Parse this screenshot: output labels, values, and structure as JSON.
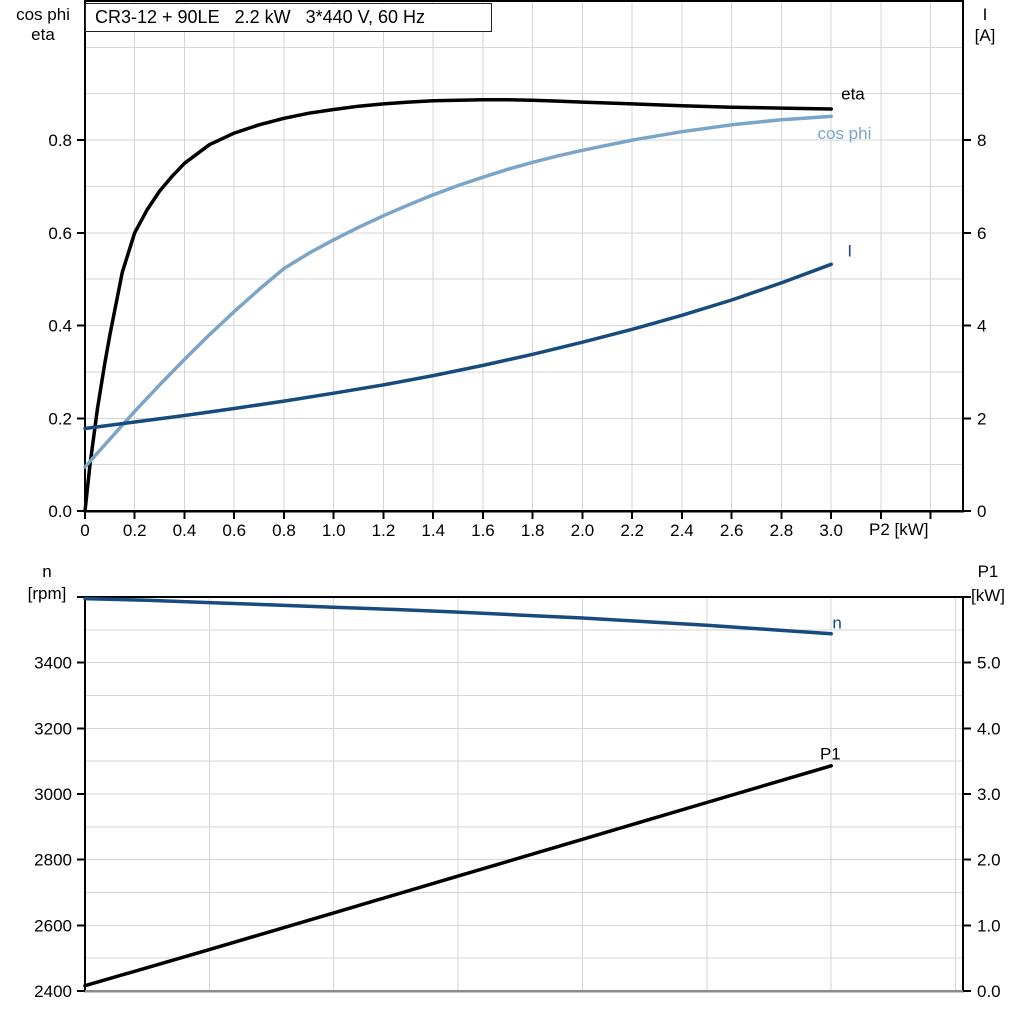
{
  "title": "CR3-12 + 90LE   2.2 kW   3*440 V, 60 Hz",
  "colors": {
    "black": "#000000",
    "light_blue": "#7aa5c8",
    "dark_blue": "#174b7d",
    "grid": "#d6d6d6",
    "axis": "#000000",
    "bottom_axis_gray": "#8c8c8c",
    "background": "#ffffff"
  },
  "top_chart_labels": {
    "left_line1": "cos phi",
    "left_line2": "eta",
    "right_line1": "I",
    "right_line2": "[A]",
    "x_axis": "P2 [kW]"
  },
  "bottom_chart_labels": {
    "left_line1": "n",
    "left_line2": "[rpm]",
    "right_line1": "P1",
    "right_line2": "[kW]"
  },
  "chart_data": [
    {
      "name": "top-chart-eta-cosphi-current",
      "type": "line",
      "title": "CR3-12 + 90LE   2.2 kW   3*440 V, 60 Hz",
      "xlabel": "P2 [kW]",
      "ylabel_left": "cos phi / eta",
      "ylabel_right": "I [A]",
      "x_range": [
        0,
        3.53
      ],
      "y_left_range": [
        0,
        1.1
      ],
      "y_right_range": [
        0,
        11
      ],
      "grid": true,
      "x_axis_color": "#000000",
      "x_ticks": [
        {
          "v": 0.0,
          "label": "0"
        },
        {
          "v": 0.2,
          "label": "0.2"
        },
        {
          "v": 0.4,
          "label": "0.4"
        },
        {
          "v": 0.6,
          "label": "0.6"
        },
        {
          "v": 0.8,
          "label": "0.8"
        },
        {
          "v": 1.0,
          "label": "1.0"
        },
        {
          "v": 1.2,
          "label": "1.2"
        },
        {
          "v": 1.4,
          "label": "1.4"
        },
        {
          "v": 1.6,
          "label": "1.6"
        },
        {
          "v": 1.8,
          "label": "1.8"
        },
        {
          "v": 2.0,
          "label": "2.0"
        },
        {
          "v": 2.2,
          "label": "2.2"
        },
        {
          "v": 2.4,
          "label": "2.4"
        },
        {
          "v": 2.6,
          "label": "2.6"
        },
        {
          "v": 2.8,
          "label": "2.8"
        },
        {
          "v": 3.0,
          "label": "3.0"
        },
        {
          "v": 3.2,
          "label": ""
        },
        {
          "v": 3.4,
          "label": ""
        }
      ],
      "y_left_ticks": [
        {
          "v": 0.0,
          "label": "0.0"
        },
        {
          "v": 0.2,
          "label": "0.2"
        },
        {
          "v": 0.4,
          "label": "0.4"
        },
        {
          "v": 0.6,
          "label": "0.6"
        },
        {
          "v": 0.8,
          "label": "0.8"
        }
      ],
      "y_right_ticks": [
        {
          "v": 0,
          "label": "0"
        },
        {
          "v": 2,
          "label": "2"
        },
        {
          "v": 4,
          "label": "4"
        },
        {
          "v": 6,
          "label": "6"
        },
        {
          "v": 8,
          "label": "8"
        }
      ],
      "grid_x": [
        0.2,
        0.4,
        0.6,
        0.8,
        1.0,
        1.2,
        1.4,
        1.6,
        1.8,
        2.0,
        2.2,
        2.4,
        2.6,
        2.8,
        3.0,
        3.2,
        3.4
      ],
      "grid_y_left": [
        0.1,
        0.2,
        0.3,
        0.4,
        0.5,
        0.6,
        0.7,
        0.8,
        0.9,
        1.0
      ],
      "series": [
        {
          "name": "eta",
          "label": "eta",
          "axis": "left",
          "color": "#000000",
          "label_x": 3.04,
          "label_y": 0.9,
          "points": [
            [
              0,
              0
            ],
            [
              0.02,
              0.1
            ],
            [
              0.05,
              0.22
            ],
            [
              0.08,
              0.32
            ],
            [
              0.1,
              0.38
            ],
            [
              0.15,
              0.515
            ],
            [
              0.2,
              0.6
            ],
            [
              0.25,
              0.65
            ],
            [
              0.3,
              0.69
            ],
            [
              0.35,
              0.722
            ],
            [
              0.4,
              0.75
            ],
            [
              0.5,
              0.79
            ],
            [
              0.6,
              0.815
            ],
            [
              0.7,
              0.833
            ],
            [
              0.8,
              0.847
            ],
            [
              0.9,
              0.858
            ],
            [
              1.0,
              0.866
            ],
            [
              1.1,
              0.873
            ],
            [
              1.2,
              0.878
            ],
            [
              1.3,
              0.882
            ],
            [
              1.4,
              0.885
            ],
            [
              1.5,
              0.886
            ],
            [
              1.6,
              0.887
            ],
            [
              1.7,
              0.887
            ],
            [
              1.8,
              0.886
            ],
            [
              1.9,
              0.884
            ],
            [
              2.0,
              0.882
            ],
            [
              2.2,
              0.878
            ],
            [
              2.4,
              0.874
            ],
            [
              2.6,
              0.871
            ],
            [
              2.8,
              0.869
            ],
            [
              3.0,
              0.867
            ]
          ]
        },
        {
          "name": "cos-phi",
          "label": "cos phi",
          "axis": "left",
          "color": "#7aa5c8",
          "label_x": 2.945,
          "label_y": 0.815,
          "points": [
            [
              0,
              0.095
            ],
            [
              0.1,
              0.155
            ],
            [
              0.2,
              0.215
            ],
            [
              0.3,
              0.272
            ],
            [
              0.4,
              0.327
            ],
            [
              0.5,
              0.38
            ],
            [
              0.6,
              0.43
            ],
            [
              0.7,
              0.478
            ],
            [
              0.8,
              0.523
            ],
            [
              0.9,
              0.556
            ],
            [
              1.0,
              0.585
            ],
            [
              1.1,
              0.612
            ],
            [
              1.2,
              0.637
            ],
            [
              1.3,
              0.66
            ],
            [
              1.4,
              0.682
            ],
            [
              1.5,
              0.702
            ],
            [
              1.6,
              0.72
            ],
            [
              1.7,
              0.737
            ],
            [
              1.8,
              0.752
            ],
            [
              1.9,
              0.766
            ],
            [
              2.0,
              0.778
            ],
            [
              2.2,
              0.8
            ],
            [
              2.4,
              0.818
            ],
            [
              2.6,
              0.833
            ],
            [
              2.8,
              0.844
            ],
            [
              3.0,
              0.851
            ]
          ]
        },
        {
          "name": "I",
          "label": "I",
          "axis": "right",
          "color": "#174b7d",
          "label_x": 3.065,
          "label_y": 5.62,
          "points": [
            [
              0,
              1.78
            ],
            [
              0.2,
              1.92
            ],
            [
              0.4,
              2.06
            ],
            [
              0.6,
              2.21
            ],
            [
              0.8,
              2.37
            ],
            [
              1.0,
              2.54
            ],
            [
              1.2,
              2.72
            ],
            [
              1.4,
              2.92
            ],
            [
              1.6,
              3.14
            ],
            [
              1.8,
              3.38
            ],
            [
              2.0,
              3.64
            ],
            [
              2.2,
              3.92
            ],
            [
              2.4,
              4.22
            ],
            [
              2.6,
              4.55
            ],
            [
              2.8,
              4.92
            ],
            [
              3.0,
              5.32
            ]
          ]
        }
      ]
    },
    {
      "name": "bottom-chart-speed-power",
      "type": "line",
      "xlabel": "P2 [kW]",
      "ylabel_left": "n [rpm]",
      "ylabel_right": "P1 [kW]",
      "x_range": [
        0,
        3.53
      ],
      "y_left_range": [
        2400,
        3600
      ],
      "y_right_range": [
        0,
        6
      ],
      "grid": true,
      "x_axis_color": "#8c8c8c",
      "x_ticks": [],
      "y_left_ticks": [
        {
          "v": 2400,
          "label": "2400"
        },
        {
          "v": 2600,
          "label": "2600"
        },
        {
          "v": 2800,
          "label": "2800"
        },
        {
          "v": 3000,
          "label": "3000"
        },
        {
          "v": 3200,
          "label": "3200"
        },
        {
          "v": 3400,
          "label": "3400"
        },
        {
          "v": 3600,
          "label": ""
        }
      ],
      "y_right_ticks": [
        {
          "v": 0.0,
          "label": "0.0"
        },
        {
          "v": 1.0,
          "label": "1.0"
        },
        {
          "v": 2.0,
          "label": "2.0"
        },
        {
          "v": 3.0,
          "label": "3.0"
        },
        {
          "v": 4.0,
          "label": "4.0"
        },
        {
          "v": 5.0,
          "label": "5.0"
        },
        {
          "v": 6.0,
          "label": ""
        }
      ],
      "grid_x": [
        0.5,
        1.0,
        1.5,
        2.0,
        2.5,
        3.0,
        3.5
      ],
      "grid_y_left": [
        2500,
        2600,
        2700,
        2800,
        2900,
        3000,
        3100,
        3200,
        3300,
        3400,
        3500
      ],
      "series": [
        {
          "name": "n",
          "label": "n",
          "axis": "left",
          "color": "#174b7d",
          "label_x": 3.005,
          "label_y": 3523,
          "points": [
            [
              0,
              3595
            ],
            [
              0.25,
              3590
            ],
            [
              0.5,
              3583
            ],
            [
              0.75,
              3576
            ],
            [
              1.0,
              3569
            ],
            [
              1.25,
              3562
            ],
            [
              1.5,
              3554
            ],
            [
              1.75,
              3545
            ],
            [
              2.0,
              3536
            ],
            [
              2.25,
              3525
            ],
            [
              2.5,
              3514
            ],
            [
              2.75,
              3501
            ],
            [
              3.0,
              3488
            ]
          ]
        },
        {
          "name": "P1",
          "label": "P1",
          "axis": "right",
          "color": "#000000",
          "label_x": 2.955,
          "label_y": 3.62,
          "points": [
            [
              0,
              0.08
            ],
            [
              0.5,
              0.63
            ],
            [
              1.0,
              1.19
            ],
            [
              1.5,
              1.75
            ],
            [
              2.0,
              2.31
            ],
            [
              2.5,
              2.87
            ],
            [
              3.0,
              3.43
            ]
          ]
        }
      ]
    }
  ]
}
